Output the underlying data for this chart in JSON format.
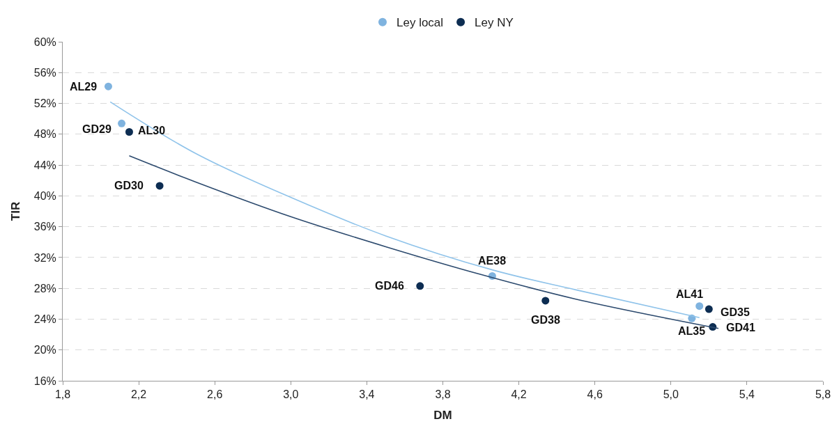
{
  "chart_data": {
    "type": "scatter",
    "xlabel": "DM",
    "ylabel": "TIR",
    "series": [
      {
        "name": "Ley local",
        "color": "#7fb3df",
        "x": [
          2.04,
          2.11,
          4.06,
          5.15,
          5.11
        ],
        "values": [
          54.2,
          49.4,
          29.6,
          25.7,
          24.1
        ]
      },
      {
        "name": "Ley NY",
        "color": "#0d2d52",
        "x": [
          2.15,
          2.31,
          3.68,
          4.34,
          5.2,
          5.22
        ],
        "values": [
          48.3,
          41.3,
          28.3,
          26.4,
          25.3,
          23.0
        ]
      },
      {
        "type": "line",
        "color": "#8fc3ea",
        "marker": "none",
        "x": [
          2.05,
          2.5,
          3.0,
          3.5,
          4.06,
          4.5,
          5.15
        ],
        "values": [
          52.2,
          45.5,
          39.8,
          34.8,
          30.4,
          27.8,
          24.2
        ]
      },
      {
        "type": "line",
        "color": "#2c4a6e",
        "marker": "none",
        "x": [
          2.15,
          2.5,
          3.0,
          3.5,
          4.0,
          4.5,
          5.25
        ],
        "values": [
          45.2,
          41.8,
          37.3,
          33.4,
          29.8,
          26.6,
          22.8
        ]
      }
    ],
    "annotations": [
      {
        "text": "AL29",
        "x": 2.04,
        "y": 54.2
      },
      {
        "text": "GD29",
        "x": 2.11,
        "y": 49.4
      },
      {
        "text": "AL30",
        "x": 2.15,
        "y": 48.3
      },
      {
        "text": "GD30",
        "x": 2.31,
        "y": 41.3
      },
      {
        "text": "GD46",
        "x": 3.68,
        "y": 28.3
      },
      {
        "text": "AE38",
        "x": 4.06,
        "y": 29.6
      },
      {
        "text": "GD38",
        "x": 4.34,
        "y": 26.4
      },
      {
        "text": "AL41",
        "x": 5.15,
        "y": 25.7
      },
      {
        "text": "GD35",
        "x": 5.2,
        "y": 25.3
      },
      {
        "text": "AL35",
        "x": 5.11,
        "y": 24.1
      },
      {
        "text": "GD41",
        "x": 5.22,
        "y": 23.0
      }
    ],
    "xlim": [
      1.8,
      5.8
    ],
    "xticks": [
      {
        "value": 1.8,
        "label": "1,8"
      },
      {
        "value": 2.2,
        "label": "2,2"
      },
      {
        "value": 2.6,
        "label": "2,6"
      },
      {
        "value": 3.0,
        "label": "3,0"
      },
      {
        "value": 3.4,
        "label": "3,4"
      },
      {
        "value": 3.8,
        "label": "3,8"
      },
      {
        "value": 4.2,
        "label": "4,2"
      },
      {
        "value": 4.6,
        "label": "4,6"
      },
      {
        "value": 5.0,
        "label": "5,0"
      },
      {
        "value": 5.4,
        "label": "5,4"
      },
      {
        "value": 5.8,
        "label": "5,8"
      }
    ],
    "ylim": [
      16,
      60
    ],
    "yticks": [
      {
        "value": 16,
        "label": "16%"
      },
      {
        "value": 20,
        "label": "20%"
      },
      {
        "value": 24,
        "label": "24%"
      },
      {
        "value": 28,
        "label": "28%"
      },
      {
        "value": 32,
        "label": "32%"
      },
      {
        "value": 36,
        "label": "36%"
      },
      {
        "value": 40,
        "label": "40%"
      },
      {
        "value": 44,
        "label": "44%"
      },
      {
        "value": 48,
        "label": "48%"
      },
      {
        "value": 52,
        "label": "52%"
      },
      {
        "value": 56,
        "label": "56%"
      },
      {
        "value": 60,
        "label": "60%"
      }
    ],
    "grid": "y",
    "legend": "top",
    "marker": "circle"
  }
}
